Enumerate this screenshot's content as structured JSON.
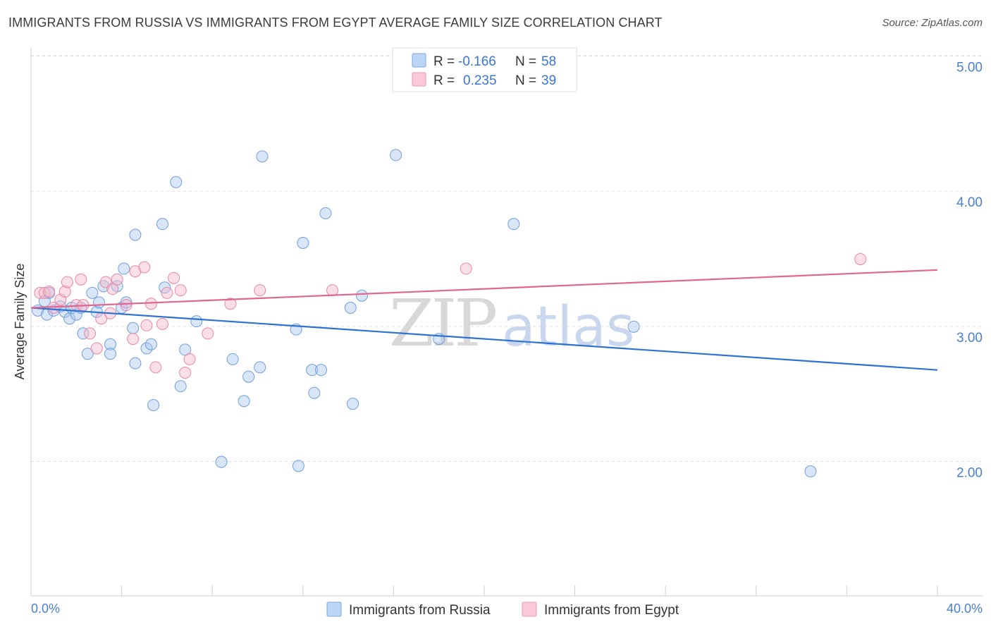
{
  "header": {
    "title": "IMMIGRANTS FROM RUSSIA VS IMMIGRANTS FROM EGYPT AVERAGE FAMILY SIZE CORRELATION CHART",
    "source": "Source: ZipAtlas.com"
  },
  "legend": {
    "r_label": "R =",
    "n_label": "N =",
    "rows": [
      {
        "series": "Immigrants from Russia",
        "r": "-0.166",
        "n": "58",
        "color": "#a9c8f0"
      },
      {
        "series": "Immigrants from Egypt",
        "r": "0.235",
        "n": "39",
        "color": "#f5b8cc"
      }
    ]
  },
  "watermark": {
    "zip": "ZIP",
    "atlas": "atlas"
  },
  "chart_data": {
    "type": "scatter",
    "title": "IMMIGRANTS FROM RUSSIA VS IMMIGRANTS FROM EGYPT AVERAGE FAMILY SIZE CORRELATION CHART",
    "xlabel": "",
    "ylabel": "Average Family Size",
    "xlim": [
      0,
      40
    ],
    "ylim": [
      1.2,
      5.1
    ],
    "x_tick_labels": [
      "0.0%",
      "40.0%"
    ],
    "y_ticks": [
      2,
      3,
      4,
      5
    ],
    "y_tick_labels": [
      "2.00",
      "3.00",
      "4.00",
      "5.00"
    ],
    "grid": true,
    "series": [
      {
        "name": "Immigrants from Russia",
        "color": "#a9c8f0",
        "stroke": "#6f9fdc",
        "trend_color": "#2e72d2",
        "trend": {
          "x": [
            0,
            40
          ],
          "y": [
            3.14,
            2.68
          ]
        },
        "points": [
          [
            0.3,
            3.12
          ],
          [
            0.6,
            3.19
          ],
          [
            0.8,
            3.25
          ],
          [
            0.7,
            3.09
          ],
          [
            1.0,
            3.12
          ],
          [
            1.3,
            3.15
          ],
          [
            1.5,
            3.11
          ],
          [
            1.7,
            3.06
          ],
          [
            1.8,
            3.14
          ],
          [
            2.0,
            3.09
          ],
          [
            2.2,
            3.14
          ],
          [
            2.3,
            2.95
          ],
          [
            2.5,
            2.8
          ],
          [
            2.7,
            3.25
          ],
          [
            2.9,
            3.11
          ],
          [
            3.0,
            3.18
          ],
          [
            3.2,
            3.3
          ],
          [
            3.5,
            2.87
          ],
          [
            3.5,
            2.8
          ],
          [
            3.8,
            3.3
          ],
          [
            4.0,
            3.14
          ],
          [
            4.1,
            3.43
          ],
          [
            4.2,
            3.18
          ],
          [
            4.5,
            2.99
          ],
          [
            4.6,
            2.73
          ],
          [
            4.6,
            3.68
          ],
          [
            5.1,
            2.84
          ],
          [
            5.3,
            2.87
          ],
          [
            5.4,
            2.42
          ],
          [
            5.8,
            3.76
          ],
          [
            5.9,
            3.29
          ],
          [
            6.4,
            4.07
          ],
          [
            6.6,
            2.56
          ],
          [
            6.8,
            2.83
          ],
          [
            7.3,
            3.04
          ],
          [
            8.4,
            2.0
          ],
          [
            8.9,
            2.76
          ],
          [
            9.4,
            2.45
          ],
          [
            9.6,
            2.63
          ],
          [
            10.1,
            2.7
          ],
          [
            10.2,
            4.26
          ],
          [
            11.7,
            2.98
          ],
          [
            11.8,
            1.97
          ],
          [
            12.0,
            3.62
          ],
          [
            12.4,
            2.68
          ],
          [
            12.5,
            2.51
          ],
          [
            12.8,
            2.68
          ],
          [
            13.0,
            3.84
          ],
          [
            14.1,
            3.14
          ],
          [
            14.2,
            2.43
          ],
          [
            14.6,
            3.23
          ],
          [
            16.1,
            4.27
          ],
          [
            18.0,
            2.91
          ],
          [
            21.3,
            3.76
          ],
          [
            26.6,
            3.0
          ],
          [
            34.4,
            1.93
          ]
        ]
      },
      {
        "name": "Immigrants from Egypt",
        "color": "#f5b8cc",
        "stroke": "#e888a6",
        "trend_color": "#e06890",
        "trend": {
          "x": [
            0,
            40
          ],
          "y": [
            3.14,
            3.42
          ]
        },
        "points": [
          [
            0.4,
            3.25
          ],
          [
            0.6,
            3.25
          ],
          [
            0.8,
            3.26
          ],
          [
            1.0,
            3.14
          ],
          [
            1.3,
            3.2
          ],
          [
            1.5,
            3.26
          ],
          [
            1.6,
            3.33
          ],
          [
            2.0,
            3.16
          ],
          [
            2.2,
            3.35
          ],
          [
            2.3,
            3.16
          ],
          [
            2.6,
            2.95
          ],
          [
            2.9,
            2.84
          ],
          [
            3.1,
            3.06
          ],
          [
            3.3,
            3.33
          ],
          [
            3.5,
            3.1
          ],
          [
            3.6,
            3.28
          ],
          [
            3.8,
            3.35
          ],
          [
            4.2,
            3.16
          ],
          [
            4.5,
            2.91
          ],
          [
            4.6,
            3.41
          ],
          [
            5.0,
            3.44
          ],
          [
            5.1,
            3.01
          ],
          [
            5.3,
            3.17
          ],
          [
            5.5,
            2.7
          ],
          [
            5.8,
            3.02
          ],
          [
            6.0,
            3.25
          ],
          [
            6.3,
            3.36
          ],
          [
            6.6,
            3.27
          ],
          [
            6.8,
            2.66
          ],
          [
            7.0,
            2.76
          ],
          [
            7.8,
            2.95
          ],
          [
            8.8,
            3.17
          ],
          [
            10.1,
            3.27
          ],
          [
            13.3,
            3.27
          ],
          [
            19.2,
            3.43
          ],
          [
            36.6,
            3.5
          ]
        ]
      }
    ]
  }
}
